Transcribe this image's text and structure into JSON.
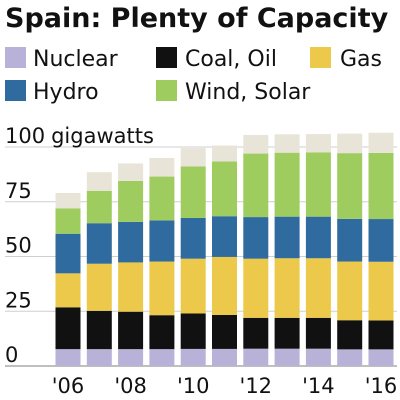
{
  "chart_data": {
    "type": "bar",
    "stacked": true,
    "title": "Spain: Plenty of Capacity",
    "unit_label": "gigawatts",
    "xlabel": "",
    "ylabel": "",
    "ylim": [
      0,
      100
    ],
    "yticks": [
      0,
      25,
      50,
      75,
      100
    ],
    "grid": true,
    "legend_position": "top",
    "categories": [
      "2006",
      "2007",
      "2008",
      "2009",
      "2010",
      "2011",
      "2012",
      "2013",
      "2014",
      "2015",
      "2016"
    ],
    "x_tick_labels": [
      {
        "category": "2006",
        "label": "'06"
      },
      {
        "category": "2008",
        "label": "'08"
      },
      {
        "category": "2010",
        "label": "'10"
      },
      {
        "category": "2012",
        "label": "'12"
      },
      {
        "category": "2014",
        "label": "'14"
      },
      {
        "category": "2016",
        "label": "'16"
      }
    ],
    "series": [
      {
        "name": "Nuclear",
        "color": "#b8b2d9",
        "values": [
          7.7,
          7.7,
          7.7,
          7.7,
          7.8,
          7.8,
          7.9,
          7.9,
          7.9,
          7.6,
          7.6
        ]
      },
      {
        "name": "Coal, Oil",
        "color": "#111111",
        "values": [
          19.1,
          17.5,
          17.1,
          15.5,
          16.2,
          15.5,
          14.1,
          14.1,
          14.1,
          13.3,
          13.2
        ]
      },
      {
        "name": "Gas",
        "color": "#ecc94b",
        "values": [
          15.5,
          21.5,
          22.5,
          24.5,
          25.0,
          26.5,
          27.0,
          27.2,
          27.2,
          26.8,
          26.8
        ]
      },
      {
        "name": "Hydro",
        "color": "#2f6b9f",
        "values": [
          18.1,
          18.5,
          18.5,
          18.8,
          18.6,
          18.6,
          19.0,
          19.0,
          19.0,
          19.5,
          19.5
        ]
      },
      {
        "name": "Wind, Solar",
        "color": "#9fcc5e",
        "values": [
          11.6,
          14.8,
          18.7,
          20.0,
          23.5,
          25.0,
          29.0,
          29.2,
          29.3,
          30.0,
          30.2
        ]
      },
      {
        "name": "",
        "color": "#e8e4d8",
        "values": [
          7.0,
          8.5,
          8.0,
          8.5,
          8.4,
          7.3,
          8.5,
          8.4,
          8.4,
          8.9,
          9.2
        ]
      }
    ]
  },
  "legend": [
    {
      "label": "Nuclear",
      "color": "#b8b2d9"
    },
    {
      "label": "Coal, Oil",
      "color": "#111111"
    },
    {
      "label": "Gas",
      "color": "#ecc94b"
    },
    {
      "label": "Hydro",
      "color": "#2f6b9f"
    },
    {
      "label": "Wind, Solar",
      "color": "#9fcc5e"
    }
  ]
}
